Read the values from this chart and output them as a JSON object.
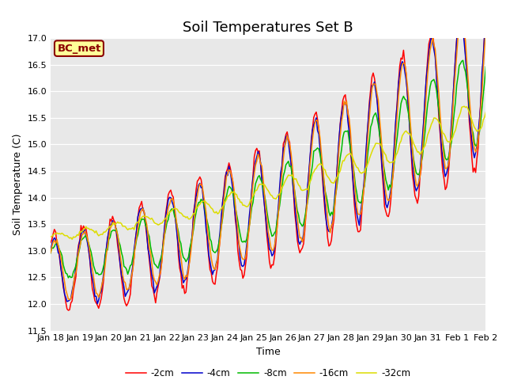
{
  "title": "Soil Temperatures Set B",
  "xlabel": "Time",
  "ylabel": "Soil Temperature (C)",
  "ylim": [
    11.5,
    17.0
  ],
  "yticks": [
    11.5,
    12.0,
    12.5,
    13.0,
    13.5,
    14.0,
    14.5,
    15.0,
    15.5,
    16.0,
    16.5,
    17.0
  ],
  "bg_color": "#e8e8e8",
  "fig_color": "#ffffff",
  "annotation_text": "BC_met",
  "annotation_bg": "#ffff99",
  "annotation_border": "#8b0000",
  "legend_entries": [
    "-2cm",
    "-4cm",
    "-8cm",
    "-16cm",
    "-32cm"
  ],
  "line_colors": [
    "#ff0000",
    "#0000cc",
    "#00bb00",
    "#ff8800",
    "#dddd00"
  ],
  "x_tick_labels": [
    "Jan 18",
    "Jan 19",
    "Jan 20",
    "Jan 21",
    "Jan 22",
    "Jan 23",
    "Jan 24",
    "Jan 25",
    "Jan 26",
    "Jan 27",
    "Jan 28",
    "Jan 29",
    "Jan 30",
    "Jan 31",
    "Feb 1",
    "Feb 2"
  ],
  "title_fontsize": 13,
  "axis_fontsize": 9,
  "tick_fontsize": 8
}
